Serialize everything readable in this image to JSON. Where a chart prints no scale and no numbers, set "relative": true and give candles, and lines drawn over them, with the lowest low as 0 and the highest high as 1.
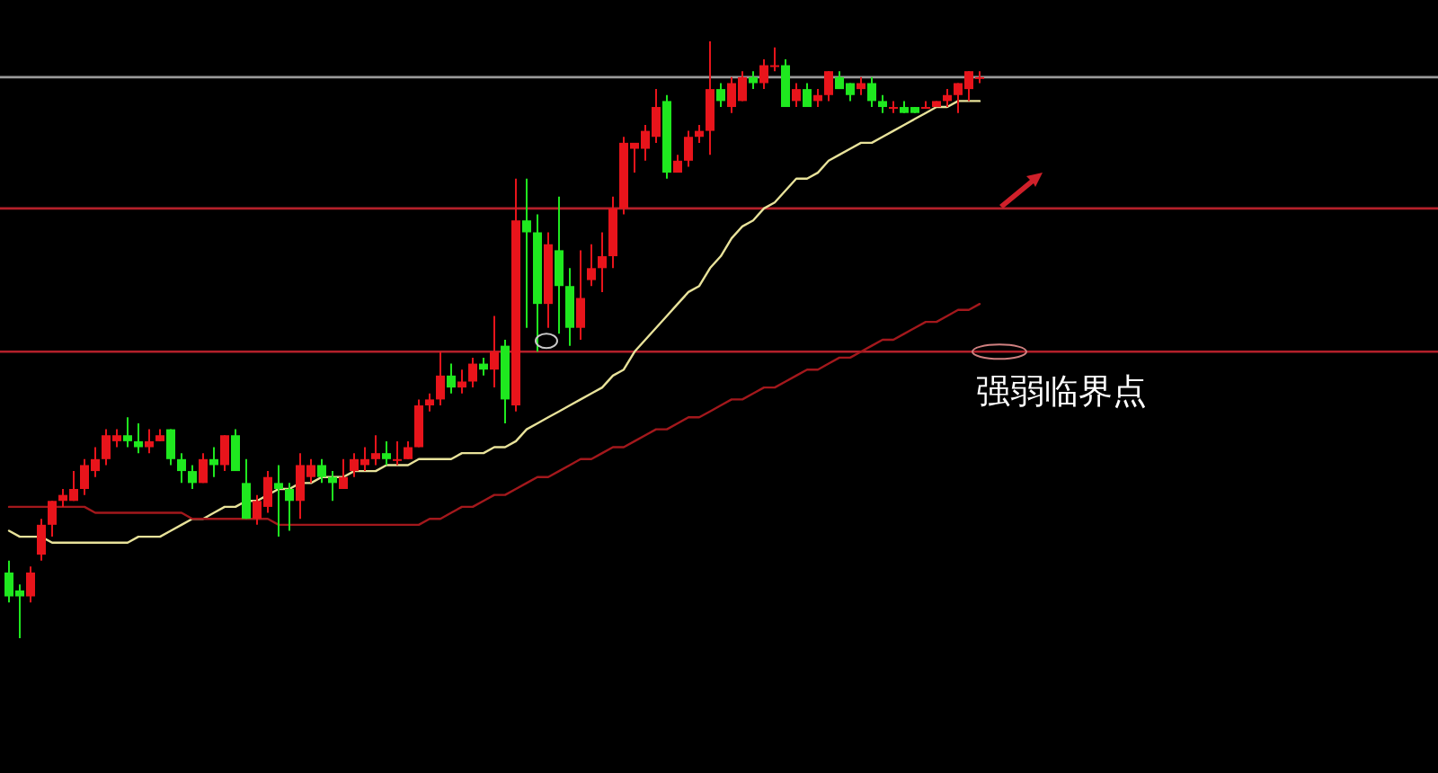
{
  "chart_data": {
    "type": "candlestick",
    "relative": true,
    "categories": [
      null,
      null,
      null,
      null,
      null,
      null,
      null,
      null,
      null,
      null,
      null,
      null,
      null,
      null,
      null,
      null,
      null,
      null,
      null,
      null,
      null,
      null,
      null,
      null,
      null,
      null,
      null,
      null,
      null,
      null,
      null,
      null,
      null,
      null,
      null,
      null,
      null,
      null,
      null,
      null,
      null,
      null,
      null,
      null,
      null,
      null,
      null,
      null,
      null,
      null,
      null,
      null,
      null,
      null,
      null,
      null,
      null,
      null,
      null,
      null,
      null,
      null,
      null,
      null,
      null,
      null,
      null,
      null,
      null,
      null,
      null,
      null,
      null,
      null,
      null,
      null,
      null,
      null,
      null,
      null,
      null,
      null,
      null,
      null,
      null,
      null,
      null,
      null,
      null,
      null,
      null
    ],
    "ohlc": [
      [
        0.11,
        0.13,
        0.06,
        0.07
      ],
      [
        0.08,
        0.09,
        0,
        0.07
      ],
      [
        0.07,
        0.12,
        0.06,
        0.11
      ],
      [
        0.14,
        0.2,
        0.13,
        0.19
      ],
      [
        0.19,
        0.23,
        0.17,
        0.23
      ],
      [
        0.23,
        0.25,
        0.22,
        0.24
      ],
      [
        0.23,
        0.28,
        0.23,
        0.25
      ],
      [
        0.25,
        0.3,
        0.24,
        0.29
      ],
      [
        0.28,
        0.32,
        0.27,
        0.3
      ],
      [
        0.3,
        0.35,
        0.29,
        0.34
      ],
      [
        0.33,
        0.35,
        0.32,
        0.34
      ],
      [
        0.34,
        0.37,
        0.32,
        0.33
      ],
      [
        0.33,
        0.36,
        0.31,
        0.32
      ],
      [
        0.32,
        0.35,
        0.31,
        0.33
      ],
      [
        0.33,
        0.35,
        0.33,
        0.34
      ],
      [
        0.35,
        0.35,
        0.29,
        0.3
      ],
      [
        0.3,
        0.31,
        0.26,
        0.28
      ],
      [
        0.28,
        0.29,
        0.25,
        0.26
      ],
      [
        0.26,
        0.31,
        0.26,
        0.3
      ],
      [
        0.3,
        0.32,
        0.27,
        0.29
      ],
      [
        0.29,
        0.34,
        0.28,
        0.34
      ],
      [
        0.34,
        0.35,
        0.28,
        0.28
      ],
      [
        0.26,
        0.3,
        0.2,
        0.2
      ],
      [
        0.2,
        0.24,
        0.19,
        0.23
      ],
      [
        0.22,
        0.28,
        0.21,
        0.27
      ],
      [
        0.26,
        0.29,
        0.17,
        0.25
      ],
      [
        0.25,
        0.26,
        0.18,
        0.23
      ],
      [
        0.23,
        0.31,
        0.2,
        0.29
      ],
      [
        0.27,
        0.3,
        0.26,
        0.29
      ],
      [
        0.29,
        0.3,
        0.26,
        0.27
      ],
      [
        0.27,
        0.28,
        0.23,
        0.26
      ],
      [
        0.25,
        0.3,
        0.25,
        0.27
      ],
      [
        0.28,
        0.31,
        0.27,
        0.3
      ],
      [
        0.29,
        0.32,
        0.28,
        0.3
      ],
      [
        0.3,
        0.34,
        0.29,
        0.31
      ],
      [
        0.31,
        0.33,
        0.29,
        0.3
      ],
      [
        0.3,
        0.33,
        0.29,
        0.3
      ],
      [
        0.3,
        0.33,
        0.3,
        0.32
      ],
      [
        0.32,
        0.4,
        0.32,
        0.39
      ],
      [
        0.39,
        0.41,
        0.38,
        0.4
      ],
      [
        0.4,
        0.48,
        0.39,
        0.44
      ],
      [
        0.44,
        0.46,
        0.41,
        0.42
      ],
      [
        0.42,
        0.45,
        0.41,
        0.43
      ],
      [
        0.43,
        0.47,
        0.42,
        0.46
      ],
      [
        0.46,
        0.47,
        0.44,
        0.45
      ],
      [
        0.45,
        0.54,
        0.42,
        0.48
      ],
      [
        0.49,
        0.5,
        0.36,
        0.4
      ],
      [
        0.39,
        0.77,
        0.38,
        0.7
      ],
      [
        0.7,
        0.77,
        0.52,
        0.68
      ],
      [
        0.68,
        0.71,
        0.48,
        0.56
      ],
      [
        0.56,
        0.68,
        0.52,
        0.66
      ],
      [
        0.65,
        0.74,
        0.51,
        0.59
      ],
      [
        0.59,
        0.62,
        0.49,
        0.52
      ],
      [
        0.52,
        0.65,
        0.5,
        0.57
      ],
      [
        0.6,
        0.66,
        0.59,
        0.62
      ],
      [
        0.62,
        0.68,
        0.58,
        0.64
      ],
      [
        0.64,
        0.74,
        0.62,
        0.72
      ],
      [
        0.72,
        0.84,
        0.71,
        0.83
      ],
      [
        0.82,
        0.83,
        0.78,
        0.83
      ],
      [
        0.82,
        0.86,
        0.8,
        0.85
      ],
      [
        0.84,
        0.92,
        0.83,
        0.89
      ],
      [
        0.9,
        0.91,
        0.77,
        0.78
      ],
      [
        0.78,
        0.81,
        0.78,
        0.8
      ],
      [
        0.8,
        0.85,
        0.79,
        0.84
      ],
      [
        0.84,
        0.86,
        0.83,
        0.85
      ],
      [
        0.85,
        1.0,
        0.81,
        0.92
      ],
      [
        0.92,
        0.93,
        0.89,
        0.9
      ],
      [
        0.89,
        0.94,
        0.88,
        0.93
      ],
      [
        0.9,
        0.95,
        0.9,
        0.94
      ],
      [
        0.94,
        0.95,
        0.92,
        0.93
      ],
      [
        0.93,
        0.97,
        0.92,
        0.96
      ],
      [
        0.96,
        0.99,
        0.95,
        0.96
      ],
      [
        0.96,
        0.97,
        0.89,
        0.89
      ],
      [
        0.9,
        0.93,
        0.89,
        0.92
      ],
      [
        0.92,
        0.93,
        0.89,
        0.89
      ],
      [
        0.9,
        0.92,
        0.89,
        0.91
      ],
      [
        0.91,
        0.95,
        0.9,
        0.95
      ],
      [
        0.94,
        0.95,
        0.92,
        0.92
      ],
      [
        0.93,
        0.93,
        0.9,
        0.91
      ],
      [
        0.92,
        0.94,
        0.91,
        0.93
      ],
      [
        0.93,
        0.94,
        0.89,
        0.9
      ],
      [
        0.9,
        0.91,
        0.88,
        0.89
      ],
      [
        0.89,
        0.9,
        0.88,
        0.89
      ],
      [
        0.89,
        0.9,
        0.88,
        0.88
      ],
      [
        0.89,
        0.89,
        0.88,
        0.88
      ],
      [
        0.89,
        0.9,
        0.89,
        0.89
      ],
      [
        0.89,
        0.9,
        0.89,
        0.9
      ],
      [
        0.9,
        0.92,
        0.89,
        0.91
      ],
      [
        0.91,
        0.93,
        0.88,
        0.93
      ],
      [
        0.92,
        0.95,
        0.9,
        0.95
      ],
      [
        0.94,
        0.95,
        0.93,
        0.94
      ]
    ],
    "series": [
      {
        "type": "line",
        "color": "#e8e29a",
        "values": [
          0.18,
          0.17,
          0.17,
          0.17,
          0.16,
          0.16,
          0.16,
          0.16,
          0.16,
          0.16,
          0.16,
          0.16,
          0.17,
          0.17,
          0.17,
          0.18,
          0.19,
          0.2,
          0.2,
          0.21,
          0.22,
          0.22,
          0.23,
          0.23,
          0.24,
          0.25,
          0.25,
          0.26,
          0.26,
          0.27,
          0.27,
          0.27,
          0.28,
          0.28,
          0.28,
          0.29,
          0.29,
          0.29,
          0.3,
          0.3,
          0.3,
          0.3,
          0.31,
          0.31,
          0.31,
          0.32,
          0.32,
          0.33,
          0.35,
          0.36,
          0.37,
          0.38,
          0.39,
          0.4,
          0.41,
          0.42,
          0.44,
          0.45,
          0.48,
          0.5,
          0.52,
          0.54,
          0.56,
          0.58,
          0.59,
          0.62,
          0.64,
          0.67,
          0.69,
          0.7,
          0.72,
          0.73,
          0.75,
          0.77,
          0.77,
          0.78,
          0.8,
          0.81,
          0.82,
          0.83,
          0.83,
          0.84,
          0.85,
          0.86,
          0.87,
          0.88,
          0.89,
          0.89,
          0.9,
          0.9,
          0.9
        ]
      },
      {
        "type": "line",
        "color": "#a3181c",
        "values": [
          0.22,
          0.22,
          0.22,
          0.22,
          0.22,
          0.22,
          0.22,
          0.22,
          0.21,
          0.21,
          0.21,
          0.21,
          0.21,
          0.21,
          0.21,
          0.21,
          0.21,
          0.2,
          0.2,
          0.2,
          0.2,
          0.2,
          0.2,
          0.2,
          0.2,
          0.19,
          0.19,
          0.19,
          0.19,
          0.19,
          0.19,
          0.19,
          0.19,
          0.19,
          0.19,
          0.19,
          0.19,
          0.19,
          0.19,
          0.2,
          0.2,
          0.21,
          0.22,
          0.22,
          0.23,
          0.24,
          0.24,
          0.25,
          0.26,
          0.27,
          0.27,
          0.28,
          0.29,
          0.3,
          0.3,
          0.31,
          0.32,
          0.32,
          0.33,
          0.34,
          0.35,
          0.35,
          0.36,
          0.37,
          0.37,
          0.38,
          0.39,
          0.4,
          0.4,
          0.41,
          0.42,
          0.42,
          0.43,
          0.44,
          0.45,
          0.45,
          0.46,
          0.47,
          0.47,
          0.48,
          0.49,
          0.5,
          0.5,
          0.51,
          0.52,
          0.53,
          0.53,
          0.54,
          0.55,
          0.55,
          0.56
        ]
      }
    ],
    "ref_lines": [
      {
        "axis": "y",
        "value": 0.94,
        "color": "#9a9a9a"
      },
      {
        "axis": "y",
        "value": 0.72,
        "color": "#b3202a"
      },
      {
        "axis": "y",
        "value": 0.48,
        "color": "#b3202a"
      }
    ],
    "annotations": [
      "强弱临界点"
    ]
  }
}
